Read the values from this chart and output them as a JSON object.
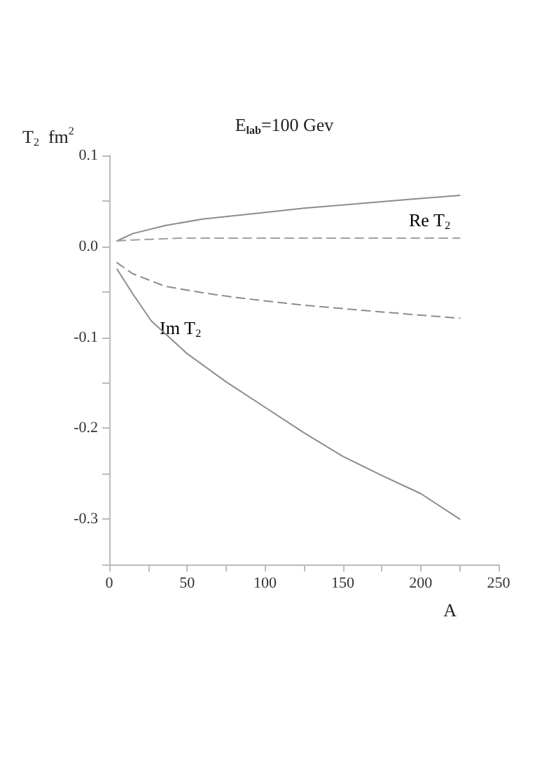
{
  "chart_data": {
    "type": "line",
    "title": "E$_{lab}$=100 Gev",
    "xlabel": "A",
    "ylabel": "T$_{2}$  fm$^{2}$",
    "xlim": [
      0,
      250
    ],
    "xticks": [
      0,
      {
        "value": 25,
        "label": null
      },
      50,
      {
        "value": 75,
        "label": null
      },
      100,
      {
        "value": 125,
        "label": null
      },
      150,
      {
        "value": 175,
        "label": null
      },
      200,
      {
        "value": 225,
        "label": null
      },
      250
    ],
    "ylim": [
      -0.35,
      0.1
    ],
    "yticks": [
      {
        "value": -0.35,
        "label": null
      },
      {
        "value": -0.25,
        "label": null
      },
      {
        "value": -0.3,
        "label": "-0.3"
      },
      {
        "value": -0.2,
        "label": "-0.2"
      },
      {
        "value": -0.15,
        "label": null
      },
      {
        "value": -0.1,
        "label": "-0.1"
      },
      {
        "value": -0.05,
        "label": null
      },
      {
        "value": 0,
        "label": "0.0"
      },
      {
        "value": 0.05,
        "label": null
      },
      {
        "value": 0.1,
        "label": "0.1"
      }
    ],
    "grid": false,
    "marker": "none",
    "series": [
      {
        "color": "#8c8c8c",
        "line_style": "solid",
        "x": [
          5,
          15,
          36,
          60,
          93,
          125,
          160,
          195,
          225
        ],
        "values": [
          0.006,
          0.014,
          0.023,
          0.03,
          0.036,
          0.042,
          0.047,
          0.052,
          0.056
        ]
      },
      {
        "color": "#a0a0a0",
        "line_style": "dashed",
        "x": [
          5,
          15,
          30,
          45,
          80,
          120,
          160,
          225
        ],
        "values": [
          0.006,
          0.007,
          0.008,
          0.009,
          0.009,
          0.009,
          0.009,
          0.009
        ]
      },
      {
        "color": "#8c8c8c",
        "line_style": "dashed",
        "x": [
          5,
          15,
          36,
          60,
          80,
          121,
          160,
          195,
          225
        ],
        "values": [
          -0.018,
          -0.03,
          -0.044,
          -0.051,
          -0.056,
          -0.064,
          -0.07,
          -0.075,
          -0.079
        ]
      },
      {
        "color": "#8c8c8c",
        "line_style": "solid",
        "x": [
          5,
          15,
          27,
          50,
          75,
          100,
          125,
          150,
          175,
          200,
          225
        ],
        "values": [
          -0.025,
          -0.052,
          -0.082,
          -0.118,
          -0.149,
          -0.177,
          -0.205,
          -0.231,
          -0.252,
          -0.272,
          -0.3
        ]
      }
    ],
    "annotations": [
      "Re T$_{2}$",
      "Im T$_{2}$"
    ]
  }
}
